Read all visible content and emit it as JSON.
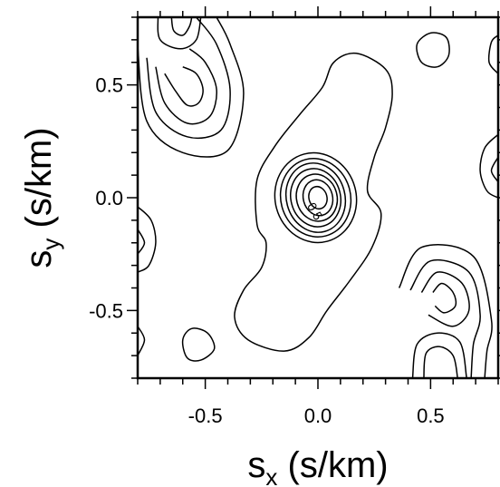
{
  "chart_data": {
    "type": "contour",
    "xlim": [
      -0.8,
      0.8
    ],
    "ylim": [
      -0.8,
      0.8
    ],
    "xlabel": {
      "main": "s",
      "sub": "x",
      "unit": " (s/km)"
    },
    "ylabel": {
      "main": "s",
      "sub": "y",
      "unit": " (s/km)"
    },
    "x_ticks": [
      {
        "value": -0.5,
        "label": "-0.5"
      },
      {
        "value": 0.0,
        "label": "0.0"
      },
      {
        "value": 0.5,
        "label": "0.5"
      }
    ],
    "y_ticks": [
      {
        "value": 0.5,
        "label": "0.5"
      },
      {
        "value": 0.0,
        "label": "0.0"
      },
      {
        "value": -0.5,
        "label": "-0.5"
      }
    ],
    "minor_tick_step": 0.1,
    "grid": false,
    "annotations": [
      {
        "text": "0.5",
        "x": -0.03,
        "y": -0.07,
        "rotation": 60
      }
    ],
    "contours": [
      {
        "name": "center-core",
        "rings": [
          {
            "cx": 0.0,
            "cy": 0.0,
            "rx": 0.04,
            "ry": 0.05,
            "rot": -15
          },
          {
            "cx": 0.0,
            "cy": 0.0,
            "rx": 0.065,
            "ry": 0.08,
            "rot": -15
          },
          {
            "cx": -0.005,
            "cy": 0.0,
            "rx": 0.09,
            "ry": 0.105,
            "rot": -15
          },
          {
            "cx": -0.01,
            "cy": 0.0,
            "rx": 0.11,
            "ry": 0.13,
            "rot": -15
          },
          {
            "cx": -0.01,
            "cy": 0.0,
            "rx": 0.13,
            "ry": 0.155,
            "rot": -15
          },
          {
            "cx": -0.01,
            "cy": 0.0,
            "rx": 0.155,
            "ry": 0.175,
            "rot": -15
          },
          {
            "cx": -0.01,
            "cy": 0.0,
            "rx": 0.18,
            "ry": 0.2,
            "rot": -15
          }
        ]
      },
      {
        "name": "center-elongated",
        "paths": [
          [
            [
              0.22,
              0.03
            ],
            [
              0.25,
              0.18
            ],
            [
              0.3,
              0.31
            ],
            [
              0.33,
              0.46
            ],
            [
              0.3,
              0.57
            ],
            [
              0.17,
              0.64
            ],
            [
              0.07,
              0.6
            ],
            [
              0.02,
              0.49
            ],
            [
              -0.08,
              0.37
            ],
            [
              -0.19,
              0.23
            ],
            [
              -0.27,
              0.08
            ],
            [
              -0.27,
              -0.12
            ],
            [
              -0.23,
              -0.2
            ],
            [
              -0.25,
              -0.31
            ],
            [
              -0.33,
              -0.41
            ],
            [
              -0.37,
              -0.53
            ],
            [
              -0.31,
              -0.63
            ],
            [
              -0.15,
              -0.68
            ],
            [
              -0.04,
              -0.62
            ],
            [
              0.04,
              -0.5
            ],
            [
              0.14,
              -0.37
            ],
            [
              0.24,
              -0.22
            ],
            [
              0.28,
              -0.07
            ]
          ]
        ]
      },
      {
        "name": "top-left-feature",
        "paths": [
          [
            [
              -0.68,
              0.55
            ],
            [
              -0.63,
              0.47
            ],
            [
              -0.58,
              0.41
            ],
            [
              -0.53,
              0.42
            ],
            [
              -0.51,
              0.48
            ],
            [
              -0.54,
              0.55
            ],
            [
              -0.6,
              0.58
            ]
          ],
          [
            [
              -0.72,
              0.58
            ],
            [
              -0.68,
              0.42
            ],
            [
              -0.58,
              0.33
            ],
            [
              -0.48,
              0.36
            ],
            [
              -0.45,
              0.48
            ],
            [
              -0.5,
              0.6
            ],
            [
              -0.57,
              0.66
            ]
          ],
          [
            [
              -0.76,
              0.62
            ],
            [
              -0.72,
              0.38
            ],
            [
              -0.58,
              0.27
            ],
            [
              -0.43,
              0.3
            ],
            [
              -0.39,
              0.48
            ],
            [
              -0.45,
              0.68
            ],
            [
              -0.54,
              0.8
            ]
          ],
          [
            [
              -0.8,
              0.67
            ],
            [
              -0.76,
              0.34
            ],
            [
              -0.6,
              0.2
            ],
            [
              -0.4,
              0.21
            ],
            [
              -0.33,
              0.46
            ],
            [
              -0.39,
              0.68
            ],
            [
              -0.45,
              0.8
            ]
          ]
        ]
      },
      {
        "name": "top-left-column",
        "paths": [
          [
            [
              -0.65,
              0.8
            ],
            [
              -0.64,
              0.74
            ],
            [
              -0.6,
              0.72
            ],
            [
              -0.57,
              0.76
            ],
            [
              -0.56,
              0.8
            ]
          ],
          [
            [
              -0.71,
              0.8
            ],
            [
              -0.7,
              0.7
            ],
            [
              -0.61,
              0.66
            ],
            [
              -0.54,
              0.7
            ],
            [
              -0.52,
              0.8
            ]
          ]
        ]
      },
      {
        "name": "bottom-right-feature",
        "paths": [
          [
            [
              0.51,
              -0.42
            ],
            [
              0.55,
              -0.38
            ],
            [
              0.6,
              -0.42
            ],
            [
              0.61,
              -0.48
            ],
            [
              0.56,
              -0.51
            ],
            [
              0.52,
              -0.48
            ]
          ],
          [
            [
              0.46,
              -0.42
            ],
            [
              0.53,
              -0.33
            ],
            [
              0.64,
              -0.38
            ],
            [
              0.67,
              -0.5
            ],
            [
              0.6,
              -0.57
            ],
            [
              0.49,
              -0.52
            ]
          ],
          [
            [
              0.41,
              -0.41
            ],
            [
              0.5,
              -0.28
            ],
            [
              0.67,
              -0.33
            ],
            [
              0.72,
              -0.52
            ],
            [
              0.69,
              -0.65
            ],
            [
              0.68,
              -0.8
            ]
          ],
          [
            [
              0.36,
              -0.4
            ],
            [
              0.46,
              -0.22
            ],
            [
              0.69,
              -0.26
            ],
            [
              0.77,
              -0.54
            ],
            [
              0.75,
              -0.68
            ],
            [
              0.74,
              -0.8
            ]
          ]
        ]
      },
      {
        "name": "bottom-right-column",
        "paths": [
          [
            [
              0.47,
              -0.8
            ],
            [
              0.48,
              -0.69
            ],
            [
              0.54,
              -0.66
            ],
            [
              0.6,
              -0.7
            ],
            [
              0.62,
              -0.8
            ]
          ],
          [
            [
              0.42,
              -0.8
            ],
            [
              0.44,
              -0.65
            ],
            [
              0.53,
              -0.6
            ],
            [
              0.63,
              -0.64
            ],
            [
              0.66,
              -0.8
            ]
          ]
        ]
      },
      {
        "name": "top-right-blob",
        "closed": true,
        "paths": [
          [
            [
              0.44,
              0.68
            ],
            [
              0.5,
              0.73
            ],
            [
              0.57,
              0.71
            ],
            [
              0.58,
              0.63
            ],
            [
              0.53,
              0.58
            ],
            [
              0.46,
              0.6
            ]
          ]
        ]
      },
      {
        "name": "bottom-left-blob",
        "closed": true,
        "paths": [
          [
            [
              -0.6,
              -0.63
            ],
            [
              -0.56,
              -0.58
            ],
            [
              -0.49,
              -0.6
            ],
            [
              -0.46,
              -0.67
            ],
            [
              -0.52,
              -0.72
            ],
            [
              -0.58,
              -0.71
            ]
          ]
        ]
      },
      {
        "name": "left-edge-feature",
        "paths": [
          [
            [
              -0.8,
              -0.04
            ],
            [
              -0.74,
              -0.1
            ],
            [
              -0.72,
              -0.2
            ],
            [
              -0.75,
              -0.3
            ],
            [
              -0.8,
              -0.33
            ]
          ],
          [
            [
              -0.8,
              -0.14
            ],
            [
              -0.77,
              -0.2
            ],
            [
              -0.8,
              -0.25
            ]
          ]
        ]
      },
      {
        "name": "right-edge-feature",
        "paths": [
          [
            [
              0.8,
              0.28
            ],
            [
              0.74,
              0.22
            ],
            [
              0.72,
              0.12
            ],
            [
              0.75,
              0.03
            ],
            [
              0.8,
              0.0
            ]
          ],
          [
            [
              0.8,
              0.18
            ],
            [
              0.77,
              0.12
            ],
            [
              0.8,
              0.07
            ]
          ],
          [
            [
              0.8,
              0.72
            ],
            [
              0.77,
              0.69
            ],
            [
              0.76,
              0.6
            ],
            [
              0.8,
              0.55
            ]
          ],
          [
            [
              -0.8,
              -0.57
            ],
            [
              -0.77,
              -0.63
            ],
            [
              -0.8,
              -0.7
            ]
          ]
        ]
      }
    ]
  }
}
